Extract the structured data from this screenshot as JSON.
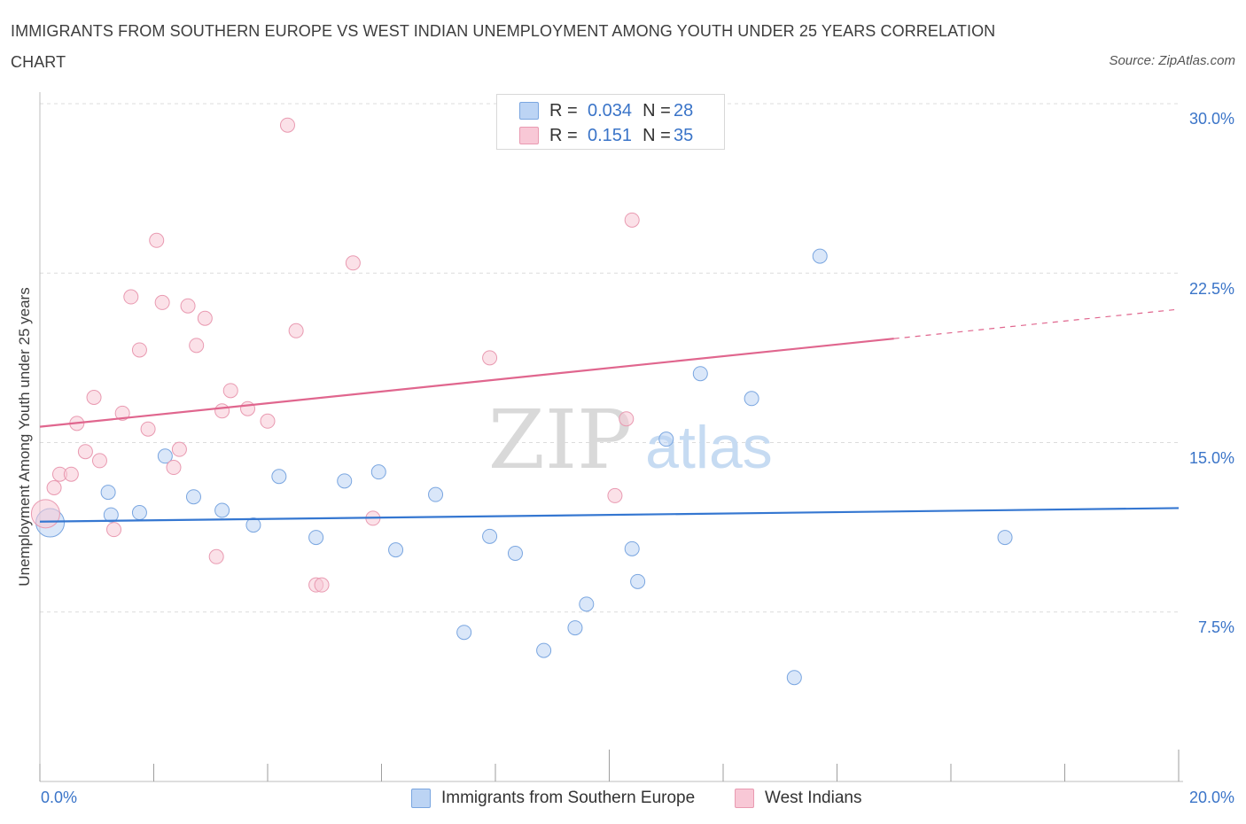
{
  "title": "IMMIGRANTS FROM SOUTHERN EUROPE VS WEST INDIAN UNEMPLOYMENT AMONG YOUTH UNDER 25 YEARS CORRELATION CHART",
  "source": "Source: ZipAtlas.com",
  "watermark": {
    "zip": "ZIP",
    "atlas": "atlas"
  },
  "legend": {
    "series1": {
      "r_label": "R =",
      "r_value": "0.034",
      "n_label": "N =",
      "n_value": "28"
    },
    "series2": {
      "r_label": "R =",
      "r_value": "0.151",
      "n_label": "N =",
      "n_value": "35"
    }
  },
  "colors": {
    "blue_fill": "#bcd4f4",
    "blue_stroke": "#7aa6e0",
    "blue_line": "#3577d1",
    "pink_fill": "#f8c8d6",
    "pink_stroke": "#e99ab1",
    "pink_line": "#e0668e",
    "value_text": "#3a74c8",
    "grid": "#dcdcdc"
  },
  "chart_data": {
    "type": "scatter",
    "title": "IMMIGRANTS FROM SOUTHERN EUROPE VS WEST INDIAN UNEMPLOYMENT AMONG YOUTH UNDER 25 YEARS CORRELATION CHART",
    "xlabel": "",
    "ylabel": "Unemployment Among Youth under 25 years",
    "xlim": [
      0,
      20
    ],
    "ylim": [
      0,
      30
    ],
    "x_tick_labels": {
      "left": "0.0%",
      "right": "20.0%"
    },
    "y_ticks": [
      {
        "value": 7.5,
        "label": "7.5%"
      },
      {
        "value": 15,
        "label": "15.0%"
      },
      {
        "value": 22.5,
        "label": "22.5%"
      },
      {
        "value": 30,
        "label": "30.0%"
      }
    ],
    "series": [
      {
        "name": "Immigrants from Southern Europe",
        "color": "blue",
        "r": 0.034,
        "n": 28,
        "trend": {
          "x": [
            0,
            20
          ],
          "y": [
            11.5,
            12.1
          ],
          "dashed_from": null
        },
        "points": [
          {
            "x": 0.18,
            "y": 11.45,
            "big": true
          },
          {
            "x": 1.2,
            "y": 12.8
          },
          {
            "x": 1.25,
            "y": 11.8
          },
          {
            "x": 1.75,
            "y": 11.9
          },
          {
            "x": 2.2,
            "y": 14.4
          },
          {
            "x": 2.7,
            "y": 12.6
          },
          {
            "x": 3.2,
            "y": 12.0
          },
          {
            "x": 3.75,
            "y": 11.35
          },
          {
            "x": 4.2,
            "y": 13.5
          },
          {
            "x": 4.85,
            "y": 10.8
          },
          {
            "x": 5.35,
            "y": 13.3
          },
          {
            "x": 5.95,
            "y": 13.7
          },
          {
            "x": 6.25,
            "y": 10.25
          },
          {
            "x": 6.95,
            "y": 12.7
          },
          {
            "x": 7.45,
            "y": 6.6
          },
          {
            "x": 7.9,
            "y": 10.85
          },
          {
            "x": 8.35,
            "y": 10.1
          },
          {
            "x": 8.85,
            "y": 5.8
          },
          {
            "x": 9.4,
            "y": 6.8
          },
          {
            "x": 9.6,
            "y": 7.85
          },
          {
            "x": 10.4,
            "y": 10.3
          },
          {
            "x": 10.5,
            "y": 8.85
          },
          {
            "x": 11.0,
            "y": 15.15
          },
          {
            "x": 11.6,
            "y": 18.05
          },
          {
            "x": 12.5,
            "y": 16.95
          },
          {
            "x": 13.25,
            "y": 4.6
          },
          {
            "x": 13.7,
            "y": 23.25
          },
          {
            "x": 16.95,
            "y": 10.8
          }
        ]
      },
      {
        "name": "West Indians",
        "color": "pink",
        "r": 0.151,
        "n": 35,
        "trend": {
          "x": [
            0,
            20
          ],
          "y": [
            15.7,
            20.9
          ],
          "dashed_from": 15.0
        },
        "points": [
          {
            "x": 0.1,
            "y": 11.85,
            "big": true
          },
          {
            "x": 0.25,
            "y": 13.0
          },
          {
            "x": 0.35,
            "y": 13.6
          },
          {
            "x": 0.55,
            "y": 13.6
          },
          {
            "x": 0.65,
            "y": 15.85
          },
          {
            "x": 0.8,
            "y": 14.6
          },
          {
            "x": 0.95,
            "y": 17.0
          },
          {
            "x": 1.05,
            "y": 14.2
          },
          {
            "x": 1.3,
            "y": 11.15
          },
          {
            "x": 1.45,
            "y": 16.3
          },
          {
            "x": 1.6,
            "y": 21.45
          },
          {
            "x": 1.75,
            "y": 19.1
          },
          {
            "x": 1.9,
            "y": 15.6
          },
          {
            "x": 2.05,
            "y": 23.95
          },
          {
            "x": 2.15,
            "y": 21.2
          },
          {
            "x": 2.35,
            "y": 13.9
          },
          {
            "x": 2.45,
            "y": 14.7
          },
          {
            "x": 2.6,
            "y": 21.05
          },
          {
            "x": 2.75,
            "y": 19.3
          },
          {
            "x": 2.9,
            "y": 20.5
          },
          {
            "x": 3.1,
            "y": 9.95
          },
          {
            "x": 3.2,
            "y": 16.4
          },
          {
            "x": 3.35,
            "y": 17.3
          },
          {
            "x": 3.65,
            "y": 16.5
          },
          {
            "x": 4.0,
            "y": 15.95
          },
          {
            "x": 4.35,
            "y": 29.05
          },
          {
            "x": 4.5,
            "y": 19.95
          },
          {
            "x": 4.85,
            "y": 8.7
          },
          {
            "x": 4.95,
            "y": 8.7
          },
          {
            "x": 5.5,
            "y": 22.95
          },
          {
            "x": 5.85,
            "y": 11.65
          },
          {
            "x": 7.9,
            "y": 18.75
          },
          {
            "x": 10.4,
            "y": 24.85
          },
          {
            "x": 10.1,
            "y": 12.65
          },
          {
            "x": 10.3,
            "y": 16.05
          }
        ]
      }
    ]
  },
  "bottom_legend": {
    "series1": "Immigrants from Southern Europe",
    "series2": "West Indians"
  }
}
